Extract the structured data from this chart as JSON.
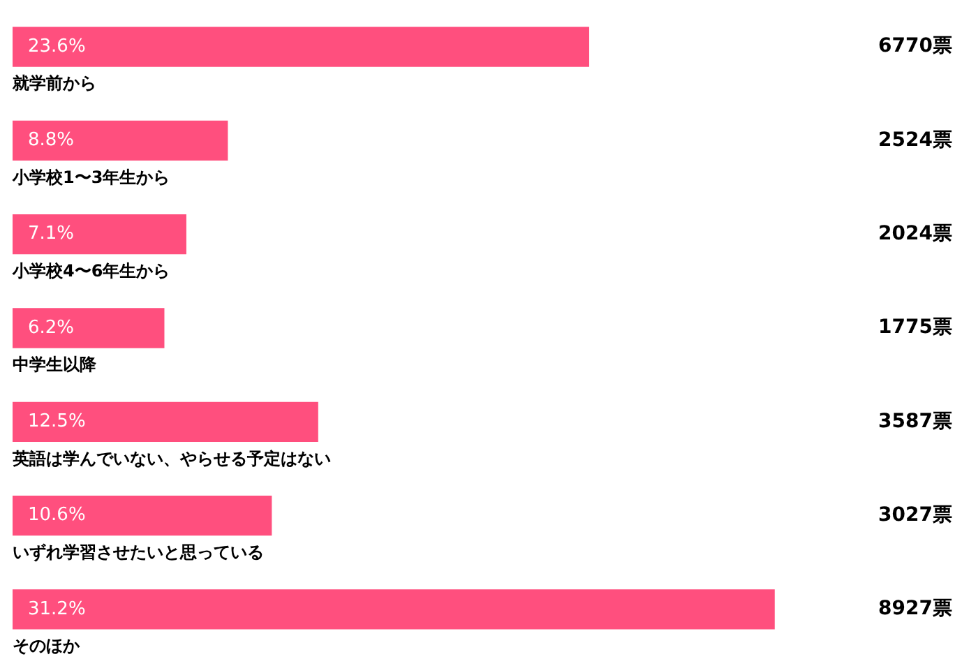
{
  "chart_data": {
    "type": "bar",
    "orientation": "horizontal",
    "categories": [
      "就学前から",
      "小学校1〜3年生から",
      "小学校4〜6年生から",
      "中学生以降",
      "英語は学んでいない、やらせる予定はない",
      "いずれ学習させたいと思っている",
      "そのほか"
    ],
    "values": [
      23.6,
      8.8,
      7.1,
      6.2,
      12.5,
      10.6,
      31.2
    ],
    "value_labels": [
      "23.6%",
      "8.8%",
      "7.1%",
      "6.2%",
      "12.5%",
      "10.6%",
      "31.2%"
    ],
    "color": "#ff4f7e",
    "tick_labels": false,
    "annotations": [
      "6770票",
      "2524票",
      "2024票",
      "1775票",
      "3587票",
      "3027票",
      "8927票"
    ]
  }
}
